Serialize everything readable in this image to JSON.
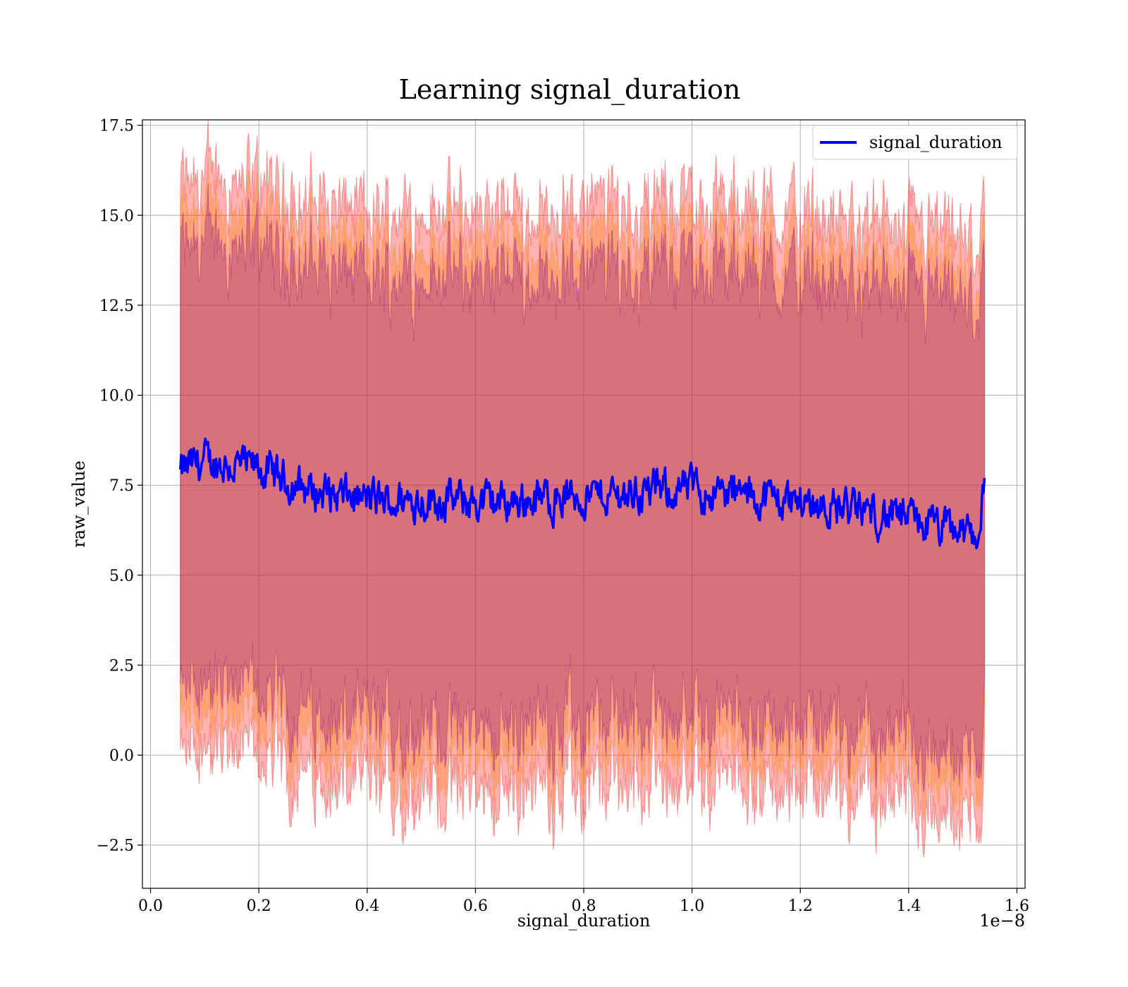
{
  "chart_data": {
    "type": "line",
    "title": "Learning signal_duration",
    "xlabel": "signal_duration",
    "ylabel": "raw_value",
    "x_scale_label": "1e−8",
    "x_scale": 1e-08,
    "xlim": [
      -0.015,
      1.615
    ],
    "ylim": [
      -3.7,
      17.65
    ],
    "x_ticks": [
      0.0,
      0.2,
      0.4,
      0.6,
      0.8,
      1.0,
      1.2,
      1.4,
      1.6
    ],
    "x_tick_labels": [
      "0.0",
      "0.2",
      "0.4",
      "0.6",
      "0.8",
      "1.0",
      "1.2",
      "1.4",
      "1.6"
    ],
    "y_ticks": [
      -2.5,
      0.0,
      2.5,
      5.0,
      7.5,
      10.0,
      12.5,
      15.0,
      17.5
    ],
    "y_tick_labels": [
      "−2.5",
      "0.0",
      "2.5",
      "5.0",
      "7.5",
      "10.0",
      "12.5",
      "15.0",
      "17.5"
    ],
    "grid": true,
    "legend": {
      "position": "top-right",
      "entries": [
        "signal_duration"
      ]
    },
    "colors": {
      "mean_line": "#0000ff",
      "band_outer": "#ff0000",
      "band_middle": "#ff8000",
      "band_inner": "#800080",
      "grid": "#b0b0b0"
    },
    "x_range_data": [
      0.055,
      1.54
    ],
    "series": [
      {
        "name": "signal_duration",
        "x": [
          0.055,
          0.07,
          0.1,
          0.15,
          0.2,
          0.25,
          0.3,
          0.35,
          0.4,
          0.45,
          0.5,
          0.55,
          0.6,
          0.65,
          0.7,
          0.75,
          0.8,
          0.85,
          0.9,
          0.95,
          1.0,
          1.05,
          1.1,
          1.15,
          1.2,
          1.25,
          1.3,
          1.35,
          1.4,
          1.45,
          1.5,
          1.53,
          1.54
        ],
        "y": [
          7.8,
          8.0,
          8.15,
          8.05,
          7.95,
          7.6,
          7.35,
          7.2,
          7.1,
          7.05,
          7.1,
          7.1,
          7.0,
          7.05,
          7.1,
          7.15,
          7.2,
          7.25,
          7.3,
          7.35,
          7.4,
          7.3,
          7.2,
          7.15,
          7.05,
          6.95,
          6.8,
          6.7,
          6.55,
          6.35,
          6.15,
          6.15,
          7.7
        ]
      }
    ],
    "bands": [
      {
        "color_key": "band_outer",
        "offset": 8.0
      },
      {
        "color_key": "band_middle",
        "offset": 7.0
      },
      {
        "color_key": "band_inner",
        "offset": 6.2
      }
    ]
  }
}
